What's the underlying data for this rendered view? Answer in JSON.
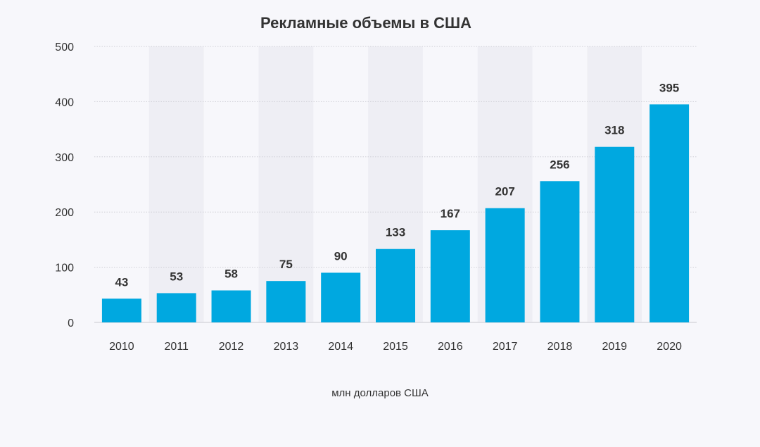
{
  "chart_data": {
    "type": "bar",
    "title": "Рекламные объемы в США",
    "xlabel": "млн долларов США",
    "ylabel": "",
    "categories": [
      "2010",
      "2011",
      "2012",
      "2013",
      "2014",
      "2015",
      "2016",
      "2017",
      "2018",
      "2019",
      "2020"
    ],
    "values": [
      43,
      53,
      58,
      75,
      90,
      133,
      167,
      207,
      256,
      318,
      395
    ],
    "ylim": [
      0,
      500
    ],
    "yticks": [
      0,
      100,
      200,
      300,
      400,
      500
    ],
    "grid": true,
    "bar_color": "#00a8e0",
    "band_color": "#eeeef4",
    "background": "#f7f7fb"
  }
}
